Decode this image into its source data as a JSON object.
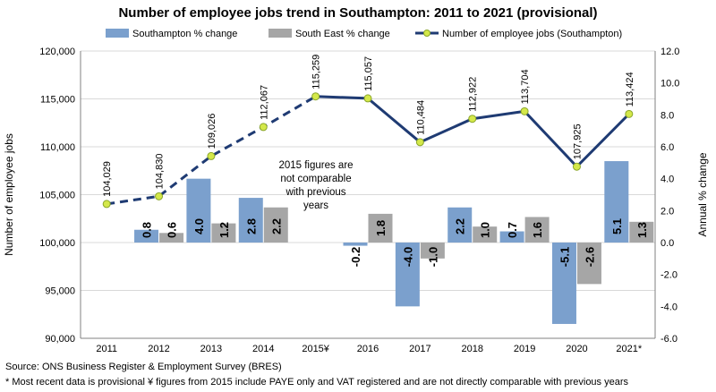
{
  "chart_data": {
    "type": "bar",
    "title": "Number of employee jobs trend in Southampton: 2011 to 2021 (provisional)",
    "categories": [
      "2011",
      "2012",
      "2013",
      "2014",
      "2015¥",
      "2016",
      "2017",
      "2018",
      "2019",
      "2020",
      "2021*"
    ],
    "ylabel": "Number of employee jobs",
    "y2label": "Annual % change",
    "ylim": [
      90000,
      120000
    ],
    "y2lim": [
      -6.0,
      12.0
    ],
    "yticks": [
      "90,000",
      "95,000",
      "100,000",
      "105,000",
      "110,000",
      "115,000",
      "120,000"
    ],
    "y2ticks": [
      "-6.0",
      "-4.0",
      "-2.0",
      "0.0",
      "2.0",
      "4.0",
      "6.0",
      "8.0",
      "10.0",
      "12.0"
    ],
    "grid": "horizontal",
    "legend_position": "top",
    "series": [
      {
        "name": "Southampton % change",
        "type": "bar",
        "axis": "right",
        "color": "#7ba0cd",
        "values": [
          null,
          0.8,
          4.0,
          2.8,
          null,
          -0.2,
          -4.0,
          2.2,
          0.7,
          -5.1,
          5.1
        ],
        "labels": [
          "",
          "0.8",
          "4.0",
          "2.8",
          "",
          "-0.2",
          "-4.0",
          "2.2",
          "0.7",
          "-5.1",
          "5.1"
        ]
      },
      {
        "name": "South East % change",
        "type": "bar",
        "axis": "right",
        "color": "#a6a6a6",
        "values": [
          null,
          0.6,
          1.2,
          2.2,
          null,
          1.8,
          -1.0,
          1.0,
          1.6,
          -2.6,
          1.3
        ],
        "labels": [
          "",
          "0.6",
          "1.2",
          "2.2",
          "",
          "1.8",
          "-1.0",
          "1.0",
          "1.6",
          "-2.6",
          "1.3"
        ]
      },
      {
        "name": "Number of employee jobs (Southampton)",
        "type": "line",
        "axis": "left",
        "color": "#1f3b73",
        "marker_color": "#d4e84a",
        "dashed_until_index": 4,
        "values": [
          104029,
          104830,
          109026,
          112067,
          115259,
          115057,
          110484,
          112922,
          113704,
          107925,
          113424
        ],
        "labels": [
          "104,029",
          "104,830",
          "109,026",
          "112,067",
          "115,259",
          "115,057",
          "110,484",
          "112,922",
          "113,704",
          "107,925",
          "113,424"
        ]
      }
    ],
    "annotation": [
      "2015 figures are",
      "not comparable",
      "with previous",
      "years"
    ]
  },
  "footer": {
    "source": "Source: ONS Business Register & Employment Survey (BRES)",
    "note": "* Most recent data is provisional ¥ figures from 2015 include PAYE only and VAT registered and are not directly comparable with previous years"
  }
}
